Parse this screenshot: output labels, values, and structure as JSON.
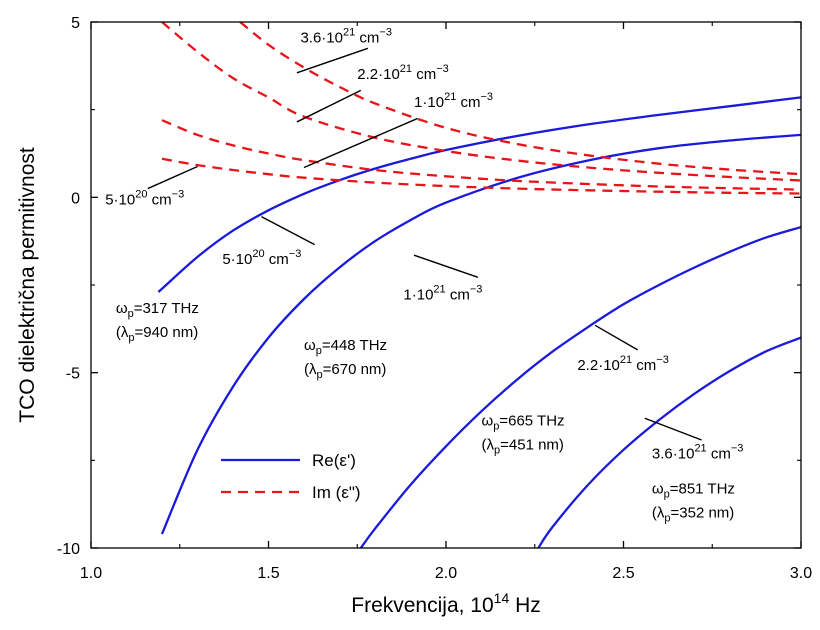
{
  "chart_data": {
    "type": "line",
    "title": "",
    "xlabel": "Frekvencija, 10",
    "xlabel_sup": "14",
    "xlabel_unit": " Hz",
    "ylabel": "TCO dielektrična permitivnost",
    "xlim": [
      1.0,
      3.0
    ],
    "ylim": [
      -10,
      5
    ],
    "xticks": [
      1.0,
      1.5,
      2.0,
      2.5,
      3.0
    ],
    "xtick_labels": [
      "1.0",
      "1.5",
      "2.0",
      "2.5",
      "3.0"
    ],
    "yticks": [
      -10,
      -5,
      0,
      5
    ],
    "ytick_labels": [
      "-10",
      "-5",
      "0",
      "5"
    ],
    "grid": false,
    "legend": {
      "placement": "lower-left",
      "entries": [
        {
          "label": "Re(ε')",
          "style": "solid",
          "color": "#1a1adb"
        },
        {
          "label": "Im (ε\")",
          "style": "dashed",
          "color": "#e8141a"
        }
      ]
    },
    "series": [
      {
        "part": "Re",
        "density": "5·10^20 cm^-3",
        "color": "#1a1adb",
        "style": "solid",
        "x": [
          1.19,
          1.3,
          1.4,
          1.5,
          1.6,
          1.7,
          1.8,
          1.9,
          2.0,
          2.2,
          2.4,
          2.6,
          2.8,
          3.0
        ],
        "y": [
          -2.7,
          -1.7,
          -0.95,
          -0.37,
          0.1,
          0.49,
          0.82,
          1.1,
          1.35,
          1.75,
          2.08,
          2.35,
          2.6,
          2.85
        ]
      },
      {
        "part": "Re",
        "density": "1·10^21 cm^-3",
        "color": "#1a1adb",
        "style": "solid",
        "x": [
          1.2,
          1.3,
          1.4,
          1.5,
          1.6,
          1.7,
          1.8,
          1.9,
          2.0,
          2.2,
          2.4,
          2.6,
          2.8,
          3.0
        ],
        "y": [
          -9.6,
          -7.2,
          -5.4,
          -4.0,
          -2.9,
          -2.0,
          -1.25,
          -0.65,
          -0.15,
          0.55,
          1.05,
          1.4,
          1.62,
          1.78
        ]
      },
      {
        "part": "Re",
        "density": "2.2·10^21 cm^-3",
        "color": "#1a1adb",
        "style": "solid",
        "x": [
          1.76,
          1.8,
          1.9,
          2.0,
          2.1,
          2.2,
          2.3,
          2.4,
          2.5,
          2.6,
          2.7,
          2.8,
          2.9,
          3.0
        ],
        "y": [
          -10.0,
          -9.45,
          -8.2,
          -7.1,
          -6.1,
          -5.2,
          -4.4,
          -3.7,
          -3.05,
          -2.5,
          -2.0,
          -1.55,
          -1.15,
          -0.85
        ]
      },
      {
        "part": "Re",
        "density": "3.6·10^21 cm^-3",
        "color": "#1a1adb",
        "style": "solid",
        "x": [
          2.26,
          2.3,
          2.4,
          2.5,
          2.6,
          2.7,
          2.8,
          2.9,
          3.0
        ],
        "y": [
          -10.0,
          -9.4,
          -8.2,
          -7.2,
          -6.35,
          -5.6,
          -4.95,
          -4.4,
          -4.0
        ]
      },
      {
        "part": "Im",
        "density": "5·10^20 cm^-3",
        "color": "#e8141a",
        "style": "dashed",
        "x": [
          1.2,
          1.3,
          1.4,
          1.5,
          1.6,
          1.8,
          2.0,
          2.2,
          2.4,
          2.6,
          2.8,
          3.0
        ],
        "y": [
          1.1,
          0.92,
          0.78,
          0.66,
          0.56,
          0.42,
          0.32,
          0.25,
          0.2,
          0.16,
          0.13,
          0.11
        ]
      },
      {
        "part": "Im",
        "density": "1·10^21 cm^-3",
        "color": "#e8141a",
        "style": "dashed",
        "x": [
          1.2,
          1.3,
          1.4,
          1.5,
          1.6,
          1.8,
          2.0,
          2.2,
          2.4,
          2.6,
          2.8,
          3.0
        ],
        "y": [
          2.2,
          1.78,
          1.48,
          1.25,
          1.06,
          0.78,
          0.6,
          0.47,
          0.38,
          0.31,
          0.26,
          0.22
        ]
      },
      {
        "part": "Im",
        "density": "2.2·10^21 cm^-3",
        "color": "#e8141a",
        "style": "dashed",
        "x": [
          1.2,
          1.3,
          1.4,
          1.5,
          1.6,
          1.8,
          2.0,
          2.2,
          2.4,
          2.6,
          2.8,
          3.0
        ],
        "y": [
          5.0,
          4.15,
          3.4,
          2.85,
          2.3,
          1.7,
          1.32,
          1.05,
          0.85,
          0.7,
          0.58,
          0.48
        ]
      },
      {
        "part": "Im",
        "density": "3.6·10^21 cm^-3",
        "color": "#e8141a",
        "style": "dashed",
        "x": [
          1.42,
          1.5,
          1.6,
          1.7,
          1.8,
          2.0,
          2.2,
          2.4,
          2.6,
          2.8,
          3.0
        ],
        "y": [
          5.0,
          4.35,
          3.7,
          3.15,
          2.68,
          1.98,
          1.52,
          1.2,
          0.96,
          0.79,
          0.66
        ]
      }
    ],
    "annotations": [
      {
        "id": "im-3p6",
        "base": "3.6·10",
        "sup1": "21",
        "mid": " cm",
        "sup2": "−3",
        "anchor": "start",
        "text_at": [
          1.59,
          4.42
        ],
        "line": [
          [
            1.58,
            3.55
          ],
          [
            1.78,
            4.25
          ]
        ]
      },
      {
        "id": "im-2p2",
        "base": "2.2·10",
        "sup1": "21",
        "mid": " cm",
        "sup2": "−3",
        "anchor": "start",
        "text_at": [
          1.75,
          3.38
        ],
        "line": [
          [
            1.58,
            2.15
          ],
          [
            1.76,
            3.05
          ]
        ]
      },
      {
        "id": "im-1e21",
        "base": "1·10",
        "sup1": "21",
        "mid": " cm",
        "sup2": "−3",
        "anchor": "start",
        "text_at": [
          1.91,
          2.58
        ],
        "line": [
          [
            1.6,
            0.85
          ],
          [
            1.92,
            2.25
          ]
        ]
      },
      {
        "id": "im-5e20",
        "base": "5·10",
        "sup1": "20",
        "mid": " cm",
        "sup2": "−3",
        "anchor": "start",
        "text_at": [
          1.04,
          -0.2
        ],
        "line": [
          [
            1.16,
            0.25
          ],
          [
            1.3,
            0.88
          ]
        ]
      },
      {
        "id": "re-5e20",
        "base": "5·10",
        "sup1": "20",
        "mid": " cm",
        "sup2": "−3",
        "anchor": "start",
        "text_at": [
          1.37,
          -1.9
        ],
        "line": [
          [
            1.48,
            -0.55
          ],
          [
            1.63,
            -1.35
          ]
        ]
      },
      {
        "id": "re-1e21",
        "base": "1·10",
        "sup1": "21",
        "mid": " cm",
        "sup2": "−3",
        "anchor": "start",
        "text_at": [
          1.88,
          -2.92
        ],
        "line": [
          [
            1.91,
            -1.65
          ],
          [
            2.09,
            -2.28
          ]
        ]
      },
      {
        "id": "re-2p2",
        "base": "2.2·10",
        "sup1": "21",
        "mid": " cm",
        "sup2": "−3",
        "anchor": "start",
        "text_at": [
          2.37,
          -4.92
        ],
        "line": [
          [
            2.42,
            -3.65
          ],
          [
            2.54,
            -4.35
          ]
        ]
      },
      {
        "id": "re-3p6",
        "base": "3.6·10",
        "sup1": "21",
        "mid": " cm",
        "sup2": "−3",
        "anchor": "start",
        "text_at": [
          2.58,
          -7.45
        ],
        "line": [
          [
            2.56,
            -6.3
          ],
          [
            2.72,
            -6.92
          ]
        ]
      }
    ],
    "plasma_labels": [
      {
        "omega": "=317 THz",
        "lambda": "=940 nm",
        "at": [
          1.07,
          -3.3
        ]
      },
      {
        "omega": "=448 THz",
        "lambda": "=670 nm",
        "at": [
          1.6,
          -4.35
        ]
      },
      {
        "omega": "=665 THz",
        "lambda": "=451 nm",
        "at": [
          2.1,
          -6.5
        ]
      },
      {
        "omega": "=851 THz",
        "lambda": "=352 nm",
        "at": [
          2.58,
          -8.45
        ]
      }
    ],
    "symbols": {
      "omega": "ω",
      "lambda": "λ",
      "sub": "p"
    }
  }
}
